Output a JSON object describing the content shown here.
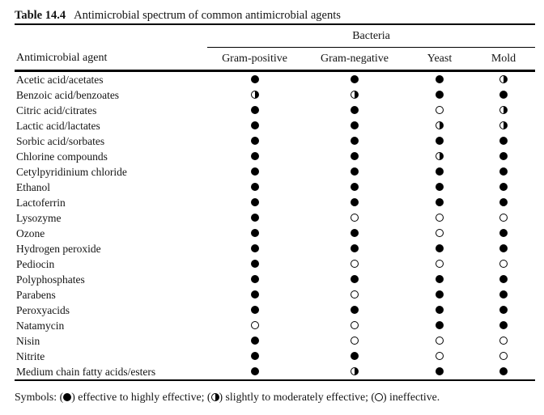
{
  "page": {
    "caption": {
      "label": "Table 14.4",
      "title": "Antimicrobial spectrum of common antimicrobial agents"
    }
  },
  "table": {
    "group_header": "Bacteria",
    "agent_header": "Antimicrobial agent",
    "column_headers": [
      "Gram-positive",
      "Gram-negative",
      "Yeast",
      "Mold"
    ],
    "column_keys": [
      "gram_positive",
      "gram_negative",
      "yeast",
      "mold"
    ],
    "symbol_glyphs": {
      "full": "●",
      "half": "◑",
      "empty": "○"
    },
    "rows": [
      {
        "agent": "Acetic acid/acetates",
        "gram_positive": "full",
        "gram_negative": "full",
        "yeast": "full",
        "mold": "half"
      },
      {
        "agent": "Benzoic acid/benzoates",
        "gram_positive": "half",
        "gram_negative": "half",
        "yeast": "full",
        "mold": "full"
      },
      {
        "agent": "Citric acid/citrates",
        "gram_positive": "full",
        "gram_negative": "full",
        "yeast": "empty",
        "mold": "half"
      },
      {
        "agent": "Lactic acid/lactates",
        "gram_positive": "full",
        "gram_negative": "full",
        "yeast": "half",
        "mold": "half"
      },
      {
        "agent": "Sorbic acid/sorbates",
        "gram_positive": "full",
        "gram_negative": "full",
        "yeast": "full",
        "mold": "full"
      },
      {
        "agent": "Chlorine compounds",
        "gram_positive": "full",
        "gram_negative": "full",
        "yeast": "half",
        "mold": "full"
      },
      {
        "agent": "Cetylpyridinium chloride",
        "gram_positive": "full",
        "gram_negative": "full",
        "yeast": "full",
        "mold": "full"
      },
      {
        "agent": "Ethanol",
        "gram_positive": "full",
        "gram_negative": "full",
        "yeast": "full",
        "mold": "full"
      },
      {
        "agent": "Lactoferrin",
        "gram_positive": "full",
        "gram_negative": "full",
        "yeast": "full",
        "mold": "full"
      },
      {
        "agent": "Lysozyme",
        "gram_positive": "full",
        "gram_negative": "empty",
        "yeast": "empty",
        "mold": "empty"
      },
      {
        "agent": "Ozone",
        "gram_positive": "full",
        "gram_negative": "full",
        "yeast": "empty",
        "mold": "full"
      },
      {
        "agent": "Hydrogen peroxide",
        "gram_positive": "full",
        "gram_negative": "full",
        "yeast": "full",
        "mold": "full"
      },
      {
        "agent": "Pediocin",
        "gram_positive": "full",
        "gram_negative": "empty",
        "yeast": "empty",
        "mold": "empty"
      },
      {
        "agent": "Polyphosphates",
        "gram_positive": "full",
        "gram_negative": "full",
        "yeast": "full",
        "mold": "full"
      },
      {
        "agent": "Parabens",
        "gram_positive": "full",
        "gram_negative": "empty",
        "yeast": "full",
        "mold": "full"
      },
      {
        "agent": "Peroxyacids",
        "gram_positive": "full",
        "gram_negative": "full",
        "yeast": "full",
        "mold": "full"
      },
      {
        "agent": "Natamycin",
        "gram_positive": "empty",
        "gram_negative": "empty",
        "yeast": "full",
        "mold": "full"
      },
      {
        "agent": "Nisin",
        "gram_positive": "full",
        "gram_negative": "empty",
        "yeast": "empty",
        "mold": "empty"
      },
      {
        "agent": "Nitrite",
        "gram_positive": "full",
        "gram_negative": "full",
        "yeast": "empty",
        "mold": "empty"
      },
      {
        "agent": "Medium chain fatty acids/esters",
        "gram_positive": "full",
        "gram_negative": "half",
        "yeast": "full",
        "mold": "full"
      }
    ]
  },
  "legend": {
    "prefix": "Symbols: ",
    "open": "(",
    "close": ") ",
    "separator": "; ",
    "terminator": ".",
    "items": [
      {
        "symbol": "full",
        "label": "effective to highly effective"
      },
      {
        "symbol": "half",
        "label": "slightly to moderately effective"
      },
      {
        "symbol": "empty",
        "label": "ineffective"
      }
    ]
  },
  "colors": {
    "ink": "#141414",
    "rule": "#000000",
    "background": "#ffffff"
  }
}
